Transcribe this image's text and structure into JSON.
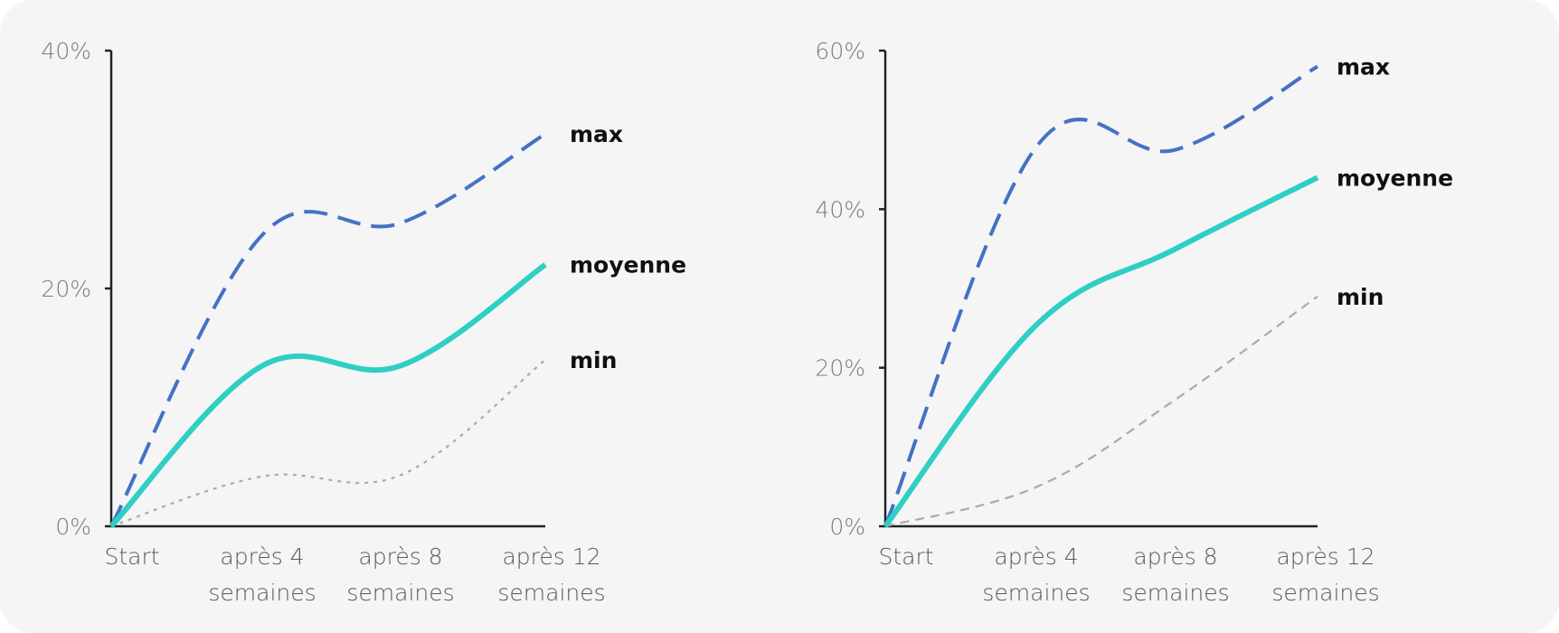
{
  "colors": {
    "max": "#4472c4",
    "moyenne": "#2ecfc4",
    "min": "#aaaaaa",
    "background": "#f5f5f5"
  },
  "chart_data": [
    {
      "type": "line",
      "title": "",
      "xlabel": "",
      "ylabel": "",
      "categories": [
        "Start",
        "après 4\nsemaines",
        "après 8\nsemaines",
        "après 12\nsemaines"
      ],
      "yticks": [
        "0%",
        "20%",
        "40%"
      ],
      "ylim": [
        0,
        40
      ],
      "series": [
        {
          "name": "max",
          "style": "dashed-long",
          "color": "#4472c4",
          "values": [
            0,
            24.5,
            25.5,
            33
          ]
        },
        {
          "name": "moyenne",
          "style": "solid",
          "color": "#2ecfc4",
          "values": [
            0,
            13.5,
            13.5,
            22
          ]
        },
        {
          "name": "min",
          "style": "dotted",
          "color": "#aaaaaa",
          "values": [
            0,
            4.2,
            4.3,
            14
          ]
        }
      ],
      "grid": false,
      "legend": "end-of-line labels"
    },
    {
      "type": "line",
      "title": "",
      "xlabel": "",
      "ylabel": "",
      "categories": [
        "Start",
        "après 4\nsemaines",
        "après 8\nsemaines",
        "après 12\nsemaines"
      ],
      "yticks": [
        "0%",
        "20%",
        "40%",
        "60%"
      ],
      "ylim": [
        0,
        60
      ],
      "series": [
        {
          "name": "max",
          "style": "dashed-long",
          "color": "#4472c4",
          "values": [
            0,
            48,
            47.5,
            58
          ]
        },
        {
          "name": "moyenne",
          "style": "solid",
          "color": "#2ecfc4",
          "values": [
            0,
            25.5,
            35,
            44
          ]
        },
        {
          "name": "min",
          "style": "dashed-short",
          "color": "#aaaaaa",
          "values": [
            0,
            5,
            16,
            29
          ]
        }
      ],
      "grid": false,
      "legend": "end-of-line labels"
    }
  ]
}
